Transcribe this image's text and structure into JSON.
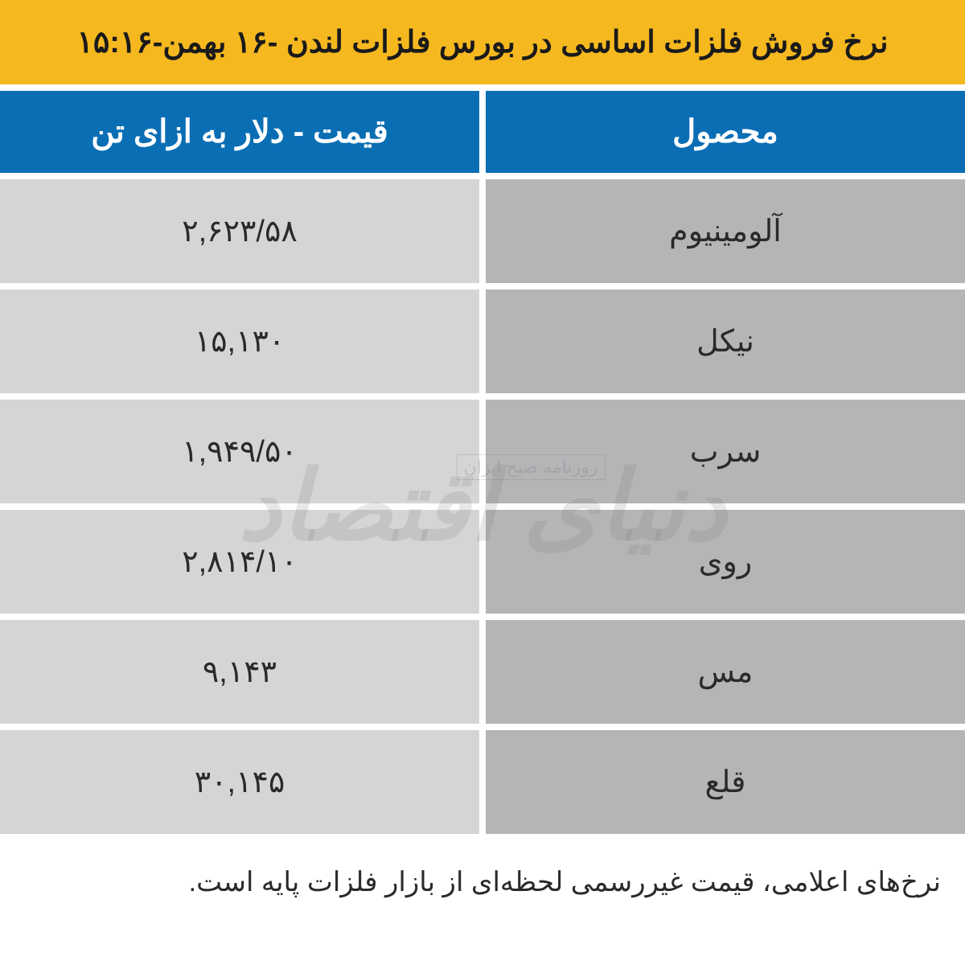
{
  "title": "نرخ فروش فلزات اساسی در بورس فلزات لندن -۱۶ بهمن-۱۵:۱۶",
  "columns": {
    "product": "محصول",
    "price": "قیمت - دلار به ازای تن"
  },
  "rows": [
    {
      "product": "آلومینیوم",
      "price": "۲,۶۲۳/۵۸"
    },
    {
      "product": "نیکل",
      "price": "۱۵,۱۳۰"
    },
    {
      "product": "سرب",
      "price": "۱,۹۴۹/۵۰"
    },
    {
      "product": "روی",
      "price": "۲,۸۱۴/۱۰"
    },
    {
      "product": "مس",
      "price": "۹,۱۴۳"
    },
    {
      "product": "قلع",
      "price": "۳۰,۱۴۵"
    }
  ],
  "footer": "نرخ‌های اعلامی، قیمت غیررسمی لحظه‌ای از بازار فلزات پایه است.",
  "watermark": {
    "main": "دنیای اقتصاد",
    "sub": "روزنامه صبح ایران"
  },
  "styling": {
    "title_bg": "#f5b81f",
    "title_color": "#1a1a1a",
    "header_bg": "#0a6eb4",
    "header_color": "#ffffff",
    "product_cell_bg": "#b5b5b8",
    "price_cell_bg": "#d5d5d7",
    "cell_text_color": "#2a2a2a",
    "gap": 8,
    "title_fontsize": 38,
    "header_fontsize": 40,
    "cell_fontsize": 38,
    "footer_fontsize": 34,
    "watermark_color": "rgba(120,120,120,0.18)"
  }
}
